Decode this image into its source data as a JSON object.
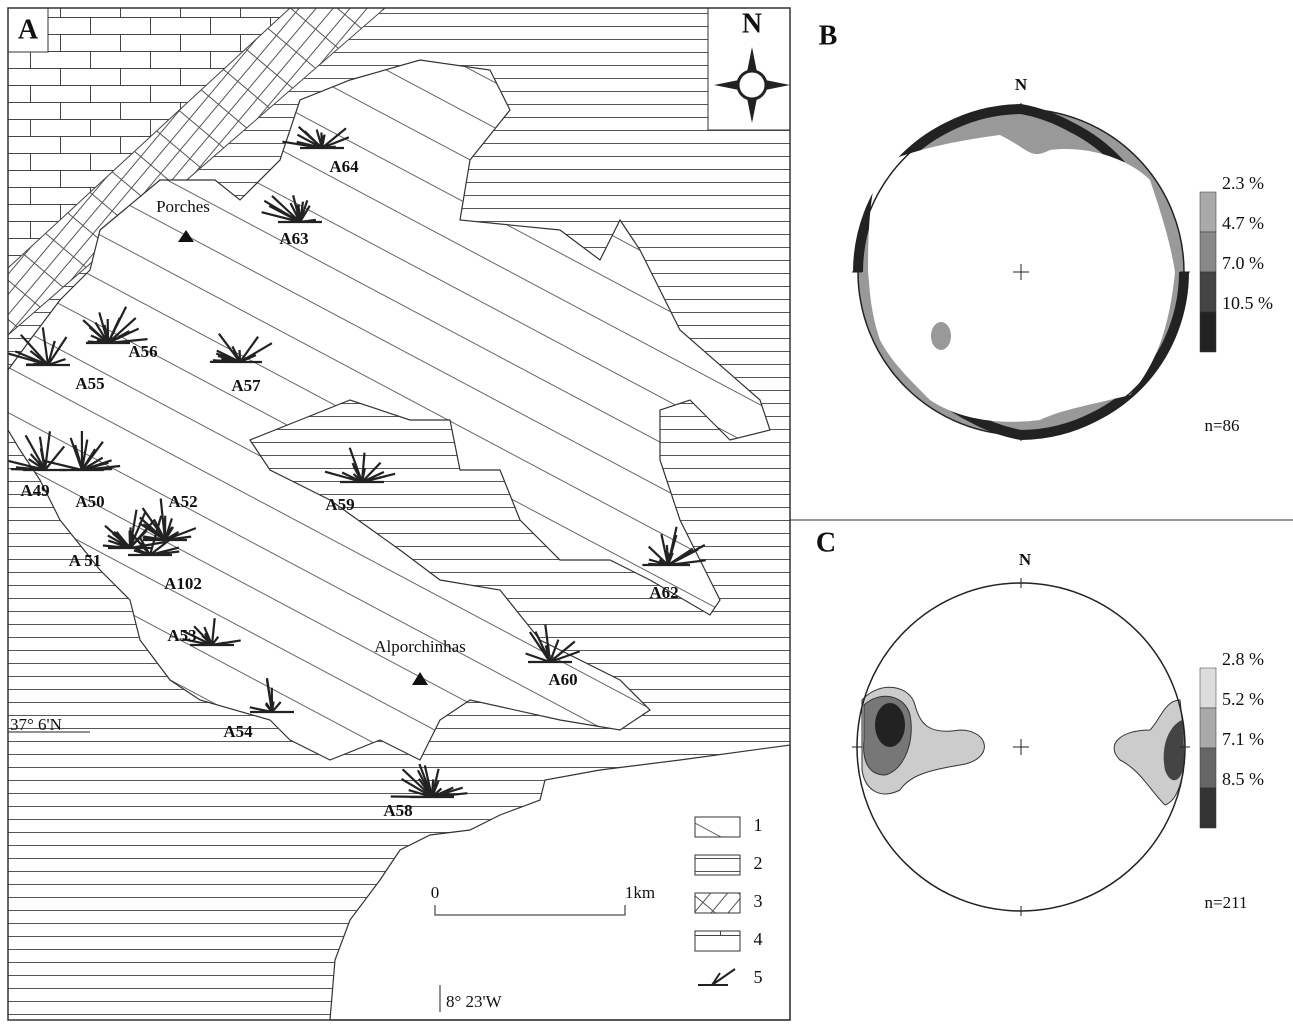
{
  "panel_a": {
    "label": "A",
    "north": "N",
    "places": [
      "Porches",
      "Alporchinhas"
    ],
    "stations": [
      "A64",
      "A63",
      "A56",
      "A55",
      "A57",
      "A49",
      "A50",
      "A52",
      "A 51",
      "A102",
      "A59",
      "A62",
      "A53",
      "A60",
      "A54",
      "A58"
    ],
    "latitude": "37° 6'N",
    "longitude": "8° 23'W",
    "scale": {
      "start": "0",
      "end": "1km"
    },
    "legend": [
      "1",
      "2",
      "3",
      "4",
      "5"
    ]
  },
  "panel_b": {
    "label": "B",
    "north": "N",
    "contours": [
      "2.3 %",
      "4.7 %",
      "7.0 %",
      "10.5 %"
    ],
    "n": "n=86"
  },
  "panel_c": {
    "label": "C",
    "north": "N",
    "contours": [
      "2.8 %",
      "5.2 %",
      "7.1 %",
      "8.5 %"
    ],
    "n": "n=211"
  }
}
